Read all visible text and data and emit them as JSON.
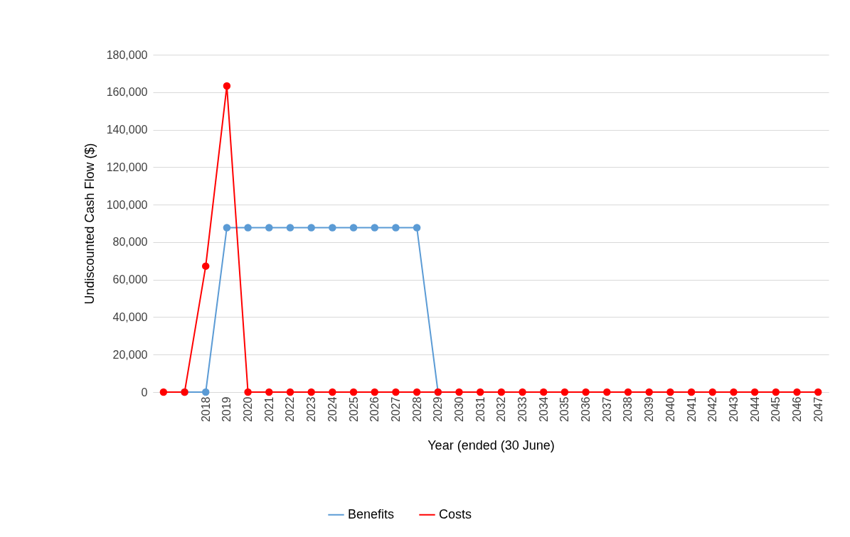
{
  "chart_data": {
    "type": "line",
    "xlabel": "Year (ended (30 June)",
    "ylabel": "Undiscounted Cash Flow ($)",
    "categories": [
      null,
      null,
      "2018",
      "2019",
      "2020",
      "2021",
      "2022",
      "2023",
      "2024",
      "2025",
      "2026",
      "2027",
      "2028",
      "2029",
      "2030",
      "2031",
      "2032",
      "2033",
      "2034",
      "2035",
      "2036",
      "2037",
      "2038",
      "2039",
      "2040",
      "2041",
      "2042",
      "2043",
      "2044",
      "2045",
      "2046",
      "2047"
    ],
    "series": [
      {
        "name": "Benefits",
        "color": "#5b9bd5",
        "values": [
          null,
          0,
          0,
          87700,
          87700,
          87700,
          87700,
          87700,
          87700,
          87700,
          87700,
          87700,
          87700,
          0,
          null,
          null,
          null,
          null,
          null,
          null,
          null,
          null,
          null,
          null,
          null,
          null,
          null,
          null,
          null,
          null,
          null,
          null
        ]
      },
      {
        "name": "Costs",
        "color": "#ff0000",
        "values": [
          0,
          0,
          67200,
          163300,
          0,
          0,
          0,
          0,
          0,
          0,
          0,
          0,
          0,
          0,
          0,
          0,
          0,
          0,
          0,
          0,
          0,
          0,
          0,
          0,
          0,
          0,
          0,
          0,
          0,
          0,
          0,
          0
        ]
      }
    ],
    "ylim": [
      0,
      180000
    ],
    "yticks": [
      0,
      {
        "value": 20000,
        "label": "20,000"
      },
      {
        "value": 40000,
        "label": "40,000"
      },
      {
        "value": 60000,
        "label": "60,000"
      },
      {
        "value": 80000,
        "label": "80,000"
      },
      {
        "value": 100000,
        "label": "100,000"
      },
      {
        "value": 120000,
        "label": "120,000"
      },
      {
        "value": 140000,
        "label": "140,000"
      },
      {
        "value": 160000,
        "label": "160,000"
      },
      {
        "value": 180000,
        "label": "180,000"
      }
    ],
    "grid": "y",
    "legend": "bottom",
    "marker": "circle",
    "line_style": "solid"
  }
}
